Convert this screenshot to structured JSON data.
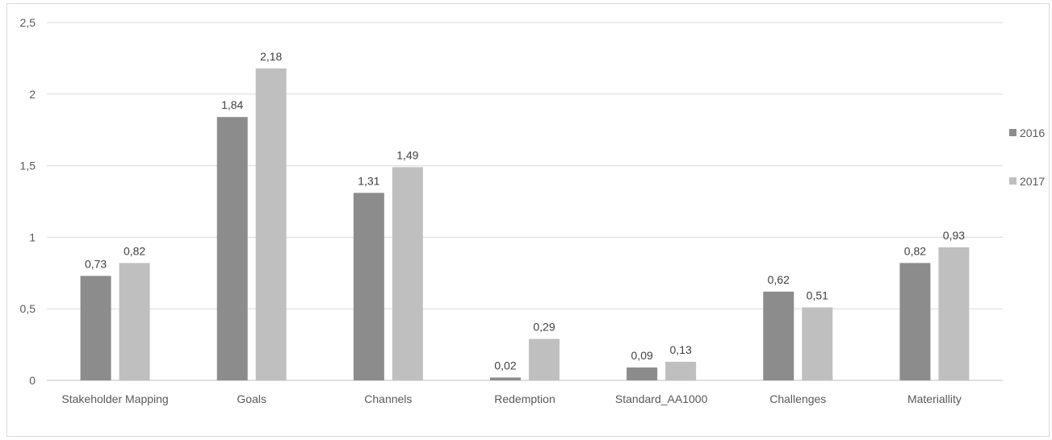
{
  "chart_data": {
    "type": "bar",
    "title": "",
    "xlabel": "",
    "ylabel": "",
    "categories": [
      "Stakeholder Mapping",
      "Goals",
      "Channels",
      "Redemption",
      "Standard_AA1000",
      "Challenges",
      "Materiallity"
    ],
    "series": [
      {
        "name": "2016",
        "color": "#8c8c8c",
        "values": [
          0.73,
          1.84,
          1.31,
          0.02,
          0.09,
          0.62,
          0.82
        ],
        "labels": [
          "0,73",
          "1,84",
          "1,31",
          "0,02",
          "0,09",
          "0,62",
          "0,82"
        ]
      },
      {
        "name": "2017",
        "color": "#bfbfbf",
        "values": [
          0.82,
          2.18,
          1.49,
          0.29,
          0.13,
          0.51,
          0.93
        ],
        "labels": [
          "0,82",
          "2,18",
          "1,49",
          "0,29",
          "0,13",
          "0,51",
          "0,93"
        ]
      }
    ],
    "ylim": [
      0,
      2.5
    ],
    "yticks": [
      0,
      0.5,
      1,
      1.5,
      2,
      2.5
    ],
    "ytick_labels": [
      "0",
      "0,5",
      "1",
      "1,5",
      "2",
      "2,5"
    ],
    "grid": true,
    "legend_position": "right"
  }
}
